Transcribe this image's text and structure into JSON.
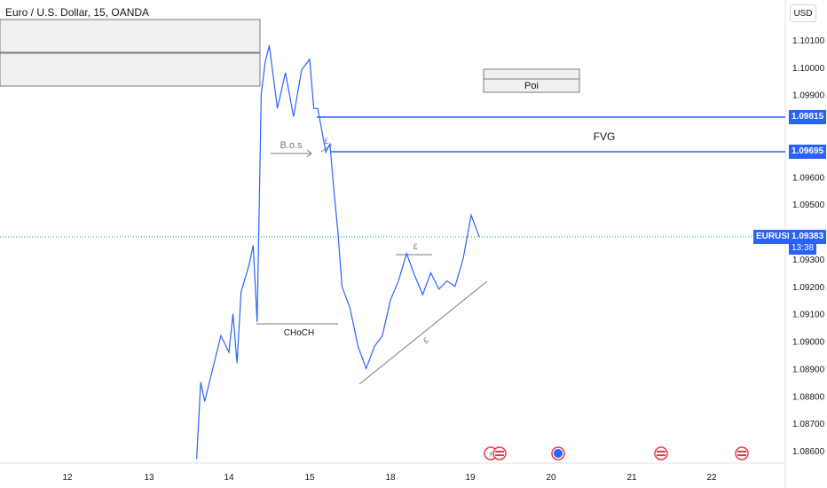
{
  "header": {
    "title": "Euro / U.S. Dollar, 15, OANDA",
    "currency": "USD"
  },
  "colors": {
    "up": "#2962ff",
    "level": "#2962ff",
    "annot": "#787b86",
    "grid": "#e0e3eb",
    "price_tag": "#2962ff"
  },
  "chart_data": {
    "type": "line",
    "symbol": "EURUSD",
    "x_ticks": [
      "12",
      "13",
      "14",
      "15",
      "18",
      "19",
      "20",
      "21",
      "22"
    ],
    "y_ticks": [
      "1.10100",
      "1.10000",
      "1.09900",
      "1.09600",
      "1.09500",
      "1.09300",
      "1.09200",
      "1.09100",
      "1.09000",
      "1.08900",
      "1.08800",
      "1.08700",
      "1.08600"
    ],
    "ylim": [
      1.0857,
      1.1019
    ],
    "price_series": [
      [
        "13.6",
        1.0857
      ],
      [
        "13.65",
        1.0885
      ],
      [
        "13.7",
        1.0878
      ],
      [
        "13.8",
        1.089
      ],
      [
        "13.9",
        1.0902
      ],
      [
        "14.0",
        1.0896
      ],
      [
        "14.05",
        1.091
      ],
      [
        "14.1",
        1.0892
      ],
      [
        "14.15",
        1.0918
      ],
      [
        "14.25",
        1.0928
      ],
      [
        "14.3",
        1.0935
      ],
      [
        "14.35",
        1.0907
      ],
      [
        "14.4",
        1.099
      ],
      [
        "14.45",
        1.1002
      ],
      [
        "14.5",
        1.1008
      ],
      [
        "14.6",
        1.0985
      ],
      [
        "14.7",
        1.0998
      ],
      [
        "14.8",
        1.0982
      ],
      [
        "14.9",
        1.0999
      ],
      [
        "15.0",
        1.1003
      ],
      [
        "15.05",
        1.0985
      ],
      [
        "15.1",
        1.0985
      ],
      [
        "15.2",
        1.0969
      ],
      [
        "15.25",
        1.0972
      ],
      [
        "15.3",
        1.0955
      ],
      [
        "15.35",
        1.094
      ],
      [
        "15.4",
        1.092
      ],
      [
        "15.5",
        1.0912
      ],
      [
        "15.6",
        1.0898
      ],
      [
        "15.7",
        1.089
      ],
      [
        "15.8",
        1.0898
      ],
      [
        "15.9",
        1.0902
      ],
      [
        "16.0",
        1.0915
      ],
      [
        "16.1",
        1.0922
      ],
      [
        "16.2",
        1.0932
      ],
      [
        "16.3",
        1.0924
      ],
      [
        "16.4",
        1.0917
      ],
      [
        "16.5",
        1.0925
      ],
      [
        "16.6",
        1.0919
      ],
      [
        "16.7",
        1.0922
      ],
      [
        "16.8",
        1.092
      ],
      [
        "16.9",
        1.093
      ],
      [
        "17.0",
        1.0946
      ],
      [
        "17.1",
        1.0938
      ]
    ],
    "levels": [
      {
        "price": "1.09815",
        "label": ""
      },
      {
        "price": "1.09695",
        "label": "FVG"
      }
    ],
    "current": {
      "symbol": "EURUSD",
      "price": "1.09383",
      "countdown": "13:38"
    },
    "annotations": {
      "bos": "B.o.s",
      "choch": "CHoCH",
      "poi": "Poi",
      "marker": "£"
    }
  }
}
